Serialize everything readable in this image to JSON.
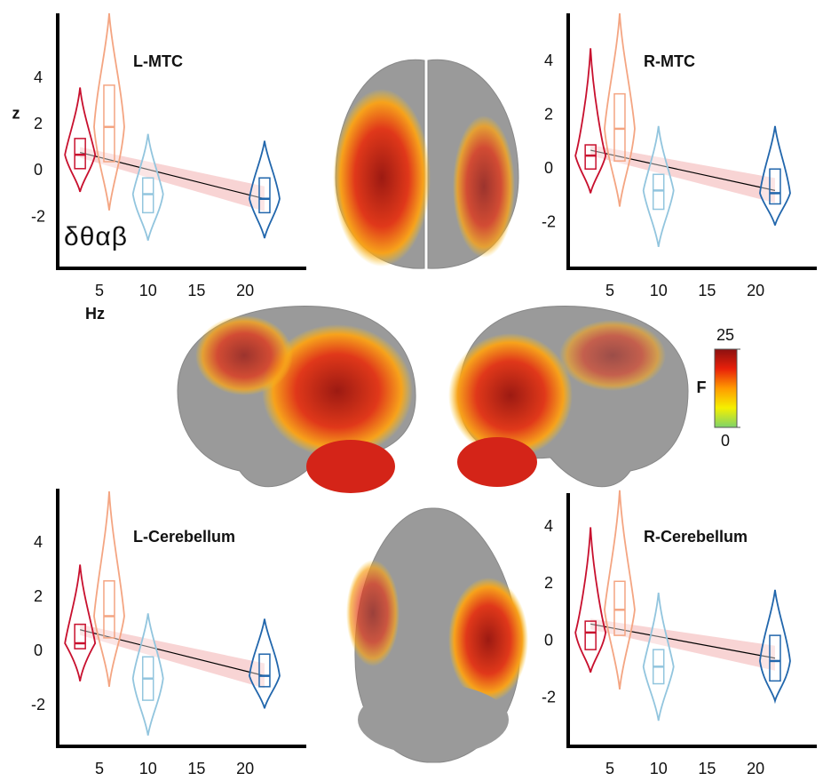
{
  "chart_data": [
    {
      "type": "violin",
      "title": "L-MTC",
      "ylabel": "z",
      "xlabel": "Hz",
      "xlim": [
        0.7,
        26.3
      ],
      "ylim": [
        -4.2,
        6.8
      ],
      "xticks": [
        5,
        10,
        15,
        20
      ],
      "yticks": [
        -2,
        0,
        2,
        4
      ],
      "series": [
        {
          "color": "#c8102e",
          "x": 3,
          "min": -0.9,
          "q1": 0.1,
          "median": 0.7,
          "q3": 1.4,
          "max": 3.6
        },
        {
          "color": "#f4a582",
          "x": 6,
          "min": -1.7,
          "q1": 0.4,
          "median": 1.9,
          "q3": 3.7,
          "max": 6.8
        },
        {
          "color": "#92c5de",
          "x": 10,
          "min": -3,
          "q1": -1.8,
          "median": -1,
          "q3": -0.3,
          "max": 1.6
        },
        {
          "color": "#2166ac",
          "x": 22,
          "min": -2.9,
          "q1": -1.8,
          "median": -1.2,
          "q3": -0.3,
          "max": 1.3
        }
      ],
      "fit": {
        "x": [
          3,
          22
        ],
        "y": [
          0.8,
          -1.2
        ]
      }
    },
    {
      "type": "violin",
      "title": "R-MTC",
      "xlim": [
        0.7,
        26.3
      ],
      "ylim": [
        -3.7,
        5.8
      ],
      "xticks": [
        5,
        10,
        15,
        20
      ],
      "yticks": [
        -2,
        0,
        2,
        4
      ],
      "series": [
        {
          "color": "#c8102e",
          "x": 3,
          "min": -0.9,
          "q1": 0,
          "median": 0.5,
          "q3": 0.9,
          "max": 4.5
        },
        {
          "color": "#f4a582",
          "x": 6,
          "min": -1.4,
          "q1": 0.3,
          "median": 1.5,
          "q3": 2.8,
          "max": 5.8
        },
        {
          "color": "#92c5de",
          "x": 10,
          "min": -2.9,
          "q1": -1.5,
          "median": -0.8,
          "q3": -0.2,
          "max": 1.6
        },
        {
          "color": "#2166ac",
          "x": 22,
          "min": -2.1,
          "q1": -1.3,
          "median": -0.9,
          "q3": 0,
          "max": 1.6
        }
      ],
      "fit": {
        "x": [
          3,
          22
        ],
        "y": [
          0.7,
          -0.8
        ]
      }
    },
    {
      "type": "violin",
      "title": "L-Cerebellum",
      "xlim": [
        0.7,
        26.3
      ],
      "ylim": [
        -3.5,
        6
      ],
      "xticks": [
        5,
        10,
        15,
        20
      ],
      "yticks": [
        -2,
        0,
        2,
        4
      ],
      "series": [
        {
          "color": "#c8102e",
          "x": 3,
          "min": -1.1,
          "q1": 0.1,
          "median": 0.3,
          "q3": 1,
          "max": 3.2
        },
        {
          "color": "#f4a582",
          "x": 6,
          "min": -1.3,
          "q1": 0.5,
          "median": 1.3,
          "q3": 2.6,
          "max": 5.9
        },
        {
          "color": "#92c5de",
          "x": 10,
          "min": -3.1,
          "q1": -1.8,
          "median": -1,
          "q3": -0.2,
          "max": 1.4
        },
        {
          "color": "#2166ac",
          "x": 22,
          "min": -2.1,
          "q1": -1.3,
          "median": -0.9,
          "q3": -0.1,
          "max": 1.2
        }
      ],
      "fit": {
        "x": [
          3,
          22
        ],
        "y": [
          0.8,
          -0.9
        ]
      }
    },
    {
      "type": "violin",
      "title": "R-Cerebellum",
      "xlim": [
        0.7,
        26.3
      ],
      "ylim": [
        -3.7,
        5.2
      ],
      "xticks": [
        5,
        10,
        15,
        20
      ],
      "yticks": [
        -2,
        0,
        2,
        4
      ],
      "series": [
        {
          "color": "#c8102e",
          "x": 3,
          "min": -1.1,
          "q1": -0.3,
          "median": 0.3,
          "q3": 0.7,
          "max": 4
        },
        {
          "color": "#f4a582",
          "x": 6,
          "min": -1.7,
          "q1": 0.2,
          "median": 1.1,
          "q3": 2.1,
          "max": 5.3
        },
        {
          "color": "#92c5de",
          "x": 10,
          "min": -2.8,
          "q1": -1.5,
          "median": -0.9,
          "q3": -0.3,
          "max": 1.7
        },
        {
          "color": "#2166ac",
          "x": 22,
          "min": -2.1,
          "q1": -1.4,
          "median": -0.7,
          "q3": 0.2,
          "max": 1.8
        }
      ],
      "fit": {
        "x": [
          3,
          22
        ],
        "y": [
          0.6,
          -0.6
        ]
      }
    }
  ],
  "legend": [
    {
      "name": "δ",
      "color": "#c8102e"
    },
    {
      "name": "θ",
      "color": "#f4a582"
    },
    {
      "name": "α",
      "color": "#92c5de"
    },
    {
      "name": "β",
      "color": "#2166ac"
    }
  ],
  "colorbar": {
    "label": "F",
    "ticks": [
      0,
      25
    ]
  }
}
